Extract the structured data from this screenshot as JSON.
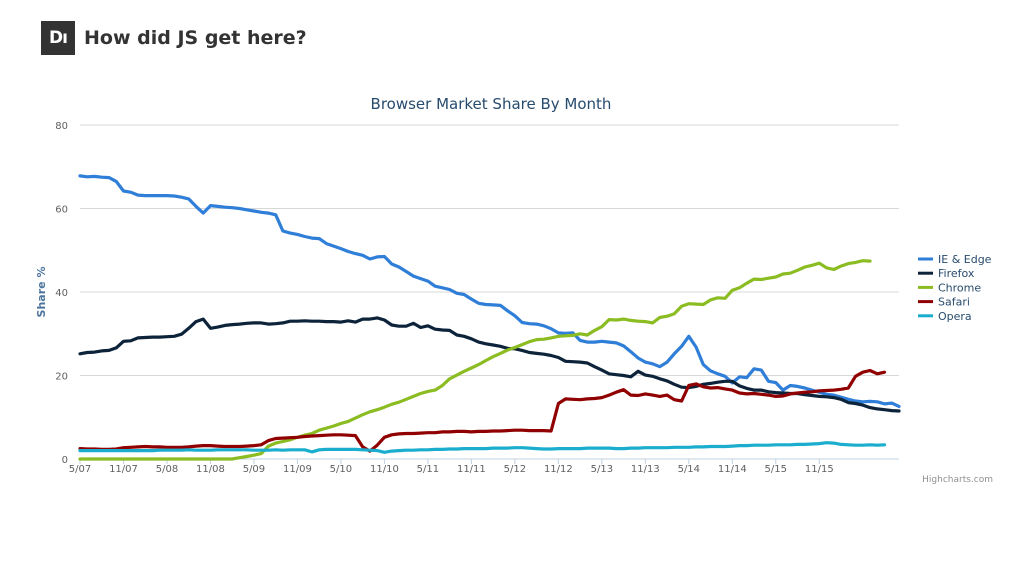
{
  "header": {
    "logo_text": "Dı",
    "title": "How did JS get here?"
  },
  "credits": "Highcharts.com",
  "chart_data": {
    "type": "line",
    "title": "Browser Market Share By Month",
    "ylabel": "Share %",
    "ylim": [
      0,
      80
    ],
    "yticks": [
      0,
      20,
      40,
      60,
      80
    ],
    "x_start": "2007-05",
    "x_tick_labels": [
      "5/07",
      "11/07",
      "5/08",
      "11/08",
      "5/09",
      "11/09",
      "5/10",
      "11/10",
      "5/11",
      "11/11",
      "5/12",
      "11/12",
      "5/13",
      "11/13",
      "5/14",
      "11/14",
      "5/15",
      "11/15"
    ],
    "legend_position": "right",
    "grid": true,
    "series": [
      {
        "name": "IE & Edge",
        "color": "#2f7ed8",
        "values": [
          67.8,
          67.6,
          67.7,
          67.5,
          67.4,
          66.5,
          64.2,
          63.9,
          63.2,
          63.1,
          63.1,
          63.1,
          63.1,
          63.0,
          62.7,
          62.3,
          60.5,
          58.9,
          60.7,
          60.5,
          60.3,
          60.2,
          60.0,
          59.7,
          59.4,
          59.1,
          58.9,
          58.5,
          54.6,
          54.1,
          53.8,
          53.3,
          52.9,
          52.8,
          51.6,
          51.0,
          50.4,
          49.7,
          49.2,
          48.8,
          47.9,
          48.4,
          48.5,
          46.7,
          46.0,
          44.9,
          43.8,
          43.2,
          42.6,
          41.4,
          41.0,
          40.6,
          39.7,
          39.4,
          38.3,
          37.3,
          37.0,
          36.9,
          36.8,
          35.5,
          34.3,
          32.7,
          32.4,
          32.3,
          31.9,
          31.2,
          30.2,
          30.1,
          30.2,
          28.4,
          28.0,
          28.0,
          28.2,
          28.0,
          27.8,
          27.1,
          25.7,
          24.2,
          23.2,
          22.8,
          22.1,
          23.2,
          25.2,
          27.0,
          29.4,
          26.8,
          22.6,
          21.1,
          20.4,
          19.8,
          18.2,
          19.7,
          19.5,
          21.6,
          21.3,
          18.6,
          18.3,
          16.5,
          17.6,
          17.4,
          17.0,
          16.5,
          16.0,
          15.5,
          15.3,
          14.8,
          14.3,
          13.9,
          13.7,
          13.8,
          13.7,
          13.2,
          13.4,
          12.6
        ]
      },
      {
        "name": "Firefox",
        "color": "#0d233a",
        "values": [
          25.2,
          25.5,
          25.6,
          25.9,
          26.0,
          26.6,
          28.2,
          28.3,
          29.0,
          29.1,
          29.2,
          29.2,
          29.3,
          29.4,
          29.9,
          31.3,
          32.9,
          33.5,
          31.3,
          31.6,
          32.0,
          32.2,
          32.3,
          32.5,
          32.6,
          32.6,
          32.3,
          32.4,
          32.6,
          33.0,
          33.0,
          33.1,
          33.0,
          33.0,
          32.9,
          32.9,
          32.8,
          33.1,
          32.8,
          33.5,
          33.5,
          33.8,
          33.3,
          32.1,
          31.8,
          31.8,
          32.5,
          31.5,
          31.9,
          31.1,
          30.9,
          30.8,
          29.7,
          29.4,
          28.8,
          28.0,
          27.6,
          27.3,
          27.0,
          26.5,
          26.4,
          26.0,
          25.5,
          25.3,
          25.1,
          24.8,
          24.3,
          23.4,
          23.3,
          23.2,
          23.0,
          22.1,
          21.3,
          20.4,
          20.2,
          20.0,
          19.7,
          21.0,
          20.1,
          19.8,
          19.2,
          18.7,
          17.9,
          17.2,
          17.1,
          17.4,
          17.9,
          18.1,
          18.4,
          18.6,
          18.6,
          17.5,
          16.9,
          16.5,
          16.5,
          16.1,
          15.9,
          15.8,
          15.7,
          15.7,
          15.4,
          15.2,
          15.0,
          14.9,
          14.7,
          14.3,
          13.5,
          13.3,
          12.9,
          12.3,
          12.0,
          11.8,
          11.6,
          11.5
        ]
      },
      {
        "name": "Chrome",
        "color": "#8bbc21",
        "values": [
          0,
          0,
          0,
          0,
          0,
          0,
          0,
          0,
          0,
          0,
          0,
          0,
          0,
          0,
          0,
          0,
          0,
          0,
          0,
          0,
          0,
          0,
          0.3,
          0.6,
          0.9,
          1.3,
          3.1,
          3.8,
          4.2,
          4.6,
          5.2,
          5.7,
          6.1,
          6.9,
          7.4,
          7.9,
          8.5,
          9.0,
          9.8,
          10.6,
          11.3,
          11.8,
          12.4,
          13.1,
          13.6,
          14.3,
          15.0,
          15.7,
          16.2,
          16.5,
          17.6,
          19.2,
          20.1,
          21.0,
          21.8,
          22.6,
          23.6,
          24.5,
          25.3,
          26.1,
          26.7,
          27.4,
          28.1,
          28.6,
          28.7,
          29.0,
          29.4,
          29.5,
          29.6,
          30.0,
          29.7,
          30.8,
          31.7,
          33.4,
          33.3,
          33.5,
          33.2,
          33.0,
          32.9,
          32.6,
          33.9,
          34.2,
          34.8,
          36.6,
          37.2,
          37.1,
          37.0,
          38.1,
          38.6,
          38.5,
          40.4,
          41.0,
          42.1,
          43.1,
          43.0,
          43.3,
          43.6,
          44.3,
          44.5,
          45.2,
          46.0,
          46.4,
          46.9,
          45.8,
          45.4,
          46.2,
          46.8,
          47.1,
          47.5,
          47.4
        ]
      },
      {
        "name": "Safari",
        "color": "#910000",
        "values": [
          2.5,
          2.4,
          2.4,
          2.3,
          2.3,
          2.4,
          2.7,
          2.8,
          2.9,
          3.0,
          2.9,
          2.9,
          2.8,
          2.8,
          2.8,
          2.9,
          3.1,
          3.2,
          3.2,
          3.1,
          3.0,
          3.0,
          3.0,
          3.1,
          3.2,
          3.4,
          4.4,
          4.9,
          5.0,
          5.1,
          5.2,
          5.4,
          5.5,
          5.6,
          5.7,
          5.8,
          5.8,
          5.7,
          5.6,
          2.9,
          1.9,
          3.3,
          5.2,
          5.8,
          6.0,
          6.1,
          6.1,
          6.2,
          6.3,
          6.3,
          6.5,
          6.5,
          6.6,
          6.6,
          6.5,
          6.6,
          6.6,
          6.7,
          6.7,
          6.8,
          6.9,
          6.9,
          6.8,
          6.8,
          6.8,
          6.7,
          13.3,
          14.4,
          14.3,
          14.2,
          14.4,
          14.5,
          14.7,
          15.3,
          16.0,
          16.6,
          15.3,
          15.2,
          15.6,
          15.3,
          15.0,
          15.3,
          14.2,
          13.9,
          17.6,
          18.0,
          17.3,
          17.0,
          17.1,
          16.8,
          16.5,
          15.8,
          15.6,
          15.7,
          15.5,
          15.3,
          15.0,
          15.1,
          15.6,
          15.8,
          16.0,
          16.1,
          16.3,
          16.4,
          16.5,
          16.7,
          17.0,
          19.8,
          20.8,
          21.2,
          20.4,
          20.8
        ]
      },
      {
        "name": "Opera",
        "color": "#1aadce",
        "values": [
          2.0,
          2.0,
          2.0,
          2.0,
          2.0,
          2.0,
          2.0,
          2.0,
          2.0,
          2.0,
          2.0,
          2.1,
          2.1,
          2.1,
          2.1,
          2.2,
          2.1,
          2.1,
          2.1,
          2.2,
          2.2,
          2.2,
          2.2,
          2.2,
          2.1,
          2.1,
          2.1,
          2.2,
          2.1,
          2.2,
          2.2,
          2.2,
          1.7,
          2.2,
          2.3,
          2.3,
          2.3,
          2.3,
          2.3,
          2.2,
          2.1,
          2.0,
          1.6,
          1.9,
          2.0,
          2.1,
          2.1,
          2.2,
          2.2,
          2.3,
          2.3,
          2.4,
          2.4,
          2.5,
          2.5,
          2.5,
          2.5,
          2.6,
          2.6,
          2.6,
          2.7,
          2.7,
          2.6,
          2.5,
          2.4,
          2.4,
          2.5,
          2.5,
          2.5,
          2.5,
          2.6,
          2.6,
          2.6,
          2.6,
          2.5,
          2.5,
          2.6,
          2.6,
          2.7,
          2.7,
          2.7,
          2.7,
          2.8,
          2.8,
          2.8,
          2.9,
          2.9,
          3.0,
          3.0,
          3.0,
          3.1,
          3.2,
          3.2,
          3.3,
          3.3,
          3.3,
          3.4,
          3.4,
          3.4,
          3.5,
          3.5,
          3.6,
          3.7,
          3.9,
          3.8,
          3.5,
          3.4,
          3.3,
          3.3,
          3.4,
          3.3,
          3.4
        ]
      }
    ]
  }
}
